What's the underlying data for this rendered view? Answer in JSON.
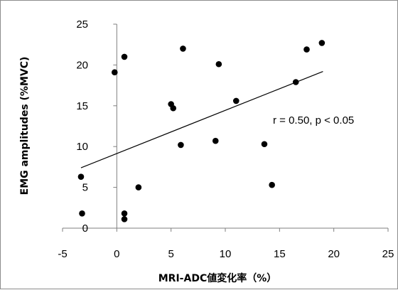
{
  "chart_data": {
    "type": "scatter",
    "xlabel": "MRI-ADC値変化率（%）",
    "ylabel": "EMG amplitudes (%MVC)",
    "xlim": [
      -5,
      25
    ],
    "ylim": [
      0,
      25
    ],
    "x_ticks": [
      -5,
      0,
      5,
      10,
      15,
      20,
      25
    ],
    "y_ticks": [
      0,
      5,
      10,
      15,
      20,
      25
    ],
    "grid": false,
    "legend": "none",
    "marker_color": "#000000",
    "trendline": {
      "x": [
        -3.3,
        19.0
      ],
      "y": [
        7.4,
        19.2
      ],
      "color": "#000000"
    },
    "annotation": "r = 0.50, p < 0.05",
    "points": [
      {
        "x": -3.3,
        "y": 6.3
      },
      {
        "x": -3.2,
        "y": 1.8
      },
      {
        "x": -0.2,
        "y": 19.1
      },
      {
        "x": 0.7,
        "y": 21.0
      },
      {
        "x": 0.7,
        "y": 1.8
      },
      {
        "x": 0.7,
        "y": 1.1
      },
      {
        "x": 2.0,
        "y": 5.0
      },
      {
        "x": 5.0,
        "y": 15.2
      },
      {
        "x": 5.2,
        "y": 14.7
      },
      {
        "x": 5.9,
        "y": 10.2
      },
      {
        "x": 6.1,
        "y": 22.0
      },
      {
        "x": 9.1,
        "y": 10.7
      },
      {
        "x": 9.4,
        "y": 20.1
      },
      {
        "x": 11.0,
        "y": 15.6
      },
      {
        "x": 13.6,
        "y": 10.3
      },
      {
        "x": 14.3,
        "y": 5.3
      },
      {
        "x": 16.5,
        "y": 17.9
      },
      {
        "x": 17.5,
        "y": 21.9
      },
      {
        "x": 18.9,
        "y": 22.7
      }
    ]
  }
}
